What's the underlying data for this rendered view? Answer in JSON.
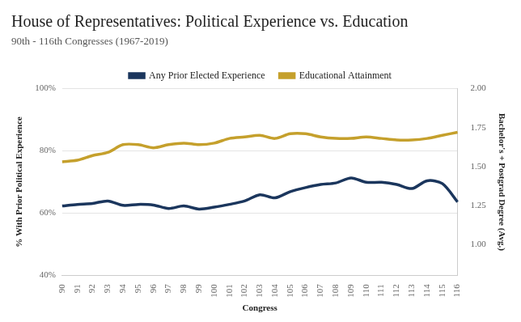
{
  "chart_data": {
    "type": "line",
    "title": "House of Representatives: Political Experience vs. Education",
    "subtitle": "90th - 116th Congresses (1967-2019)",
    "x_label": "Congress",
    "y_label": "% With Prior Political Experience",
    "y2_label": "Bachelor's + Postgrad Degree (Avg.)",
    "categories": [
      "90",
      "91",
      "92",
      "93",
      "94",
      "95",
      "96",
      "97",
      "98",
      "99",
      "100",
      "101",
      "102",
      "103",
      "104",
      "105",
      "106",
      "107",
      "108",
      "109",
      "110",
      "111",
      "112",
      "113",
      "114",
      "115",
      "116"
    ],
    "series": [
      {
        "name": "Any Prior Elected Experience",
        "color": "#1b365d",
        "values": [
          62.3,
          62.8,
          63.1,
          63.9,
          62.5,
          62.8,
          62.6,
          61.5,
          62.3,
          61.3,
          61.9,
          62.8,
          63.9,
          65.9,
          64.9,
          66.9,
          68.2,
          69.2,
          69.7,
          71.3,
          69.9,
          69.9,
          69.2,
          67.9,
          70.4,
          69.5,
          63.6
        ]
      },
      {
        "name": "Educational Attainment",
        "color": "#c5a02c",
        "axis": "y2",
        "values": [
          1.53,
          1.54,
          1.57,
          1.59,
          1.64,
          1.64,
          1.62,
          1.64,
          1.65,
          1.64,
          1.65,
          1.68,
          1.69,
          1.7,
          1.68,
          1.71,
          1.71,
          1.69,
          1.68,
          1.68,
          1.69,
          1.68,
          1.67,
          1.67,
          1.68,
          1.7,
          1.72
        ]
      }
    ],
    "ylim": [
      40,
      100
    ],
    "yticks": [
      {
        "value": 40,
        "label": "40%"
      },
      {
        "value": 60,
        "label": "60%"
      },
      {
        "value": 80,
        "label": "80%"
      },
      {
        "value": 100,
        "label": "100%"
      }
    ],
    "y2lim": [
      0.8,
      2.0
    ],
    "y2ticks": [
      {
        "value": 1,
        "label": "1.00"
      },
      {
        "value": 1.25,
        "label": "1.25"
      },
      {
        "value": 1.5,
        "label": "1.50"
      },
      {
        "value": 1.75,
        "label": "1.75"
      },
      {
        "value": 2,
        "label": "2.00"
      }
    ],
    "grid": true,
    "legend": "top"
  }
}
